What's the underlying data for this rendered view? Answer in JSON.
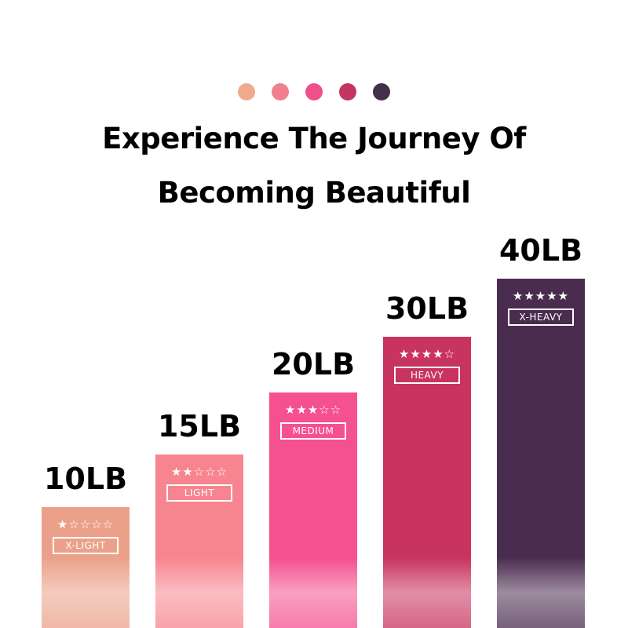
{
  "header": {
    "dot_colors": [
      "#f2aa8e",
      "#f0808e",
      "#f0508a",
      "#c43560",
      "#45304a"
    ],
    "title_line1": "Experience The Journey Of",
    "title_line2": "Becoming Beautiful"
  },
  "chart_data": {
    "type": "bar",
    "categories": [
      "10LB",
      "15LB",
      "20LB",
      "30LB",
      "40LB"
    ],
    "values": [
      10,
      15,
      20,
      30,
      40
    ],
    "value_labels": [
      "10LB",
      "15LB",
      "20LB",
      "30LB",
      "40LB"
    ],
    "levels": [
      "X-LIGHT",
      "LIGHT",
      "MEDIUM",
      "HEAVY",
      "X-HEAVY"
    ],
    "star_ratings": [
      1,
      2,
      3,
      4,
      5
    ],
    "star_max": 5,
    "colors": [
      "#eba189",
      "#f7858f",
      "#f5508f",
      "#c8335f",
      "#4a2c4f"
    ],
    "grid": false,
    "legend": "none"
  }
}
